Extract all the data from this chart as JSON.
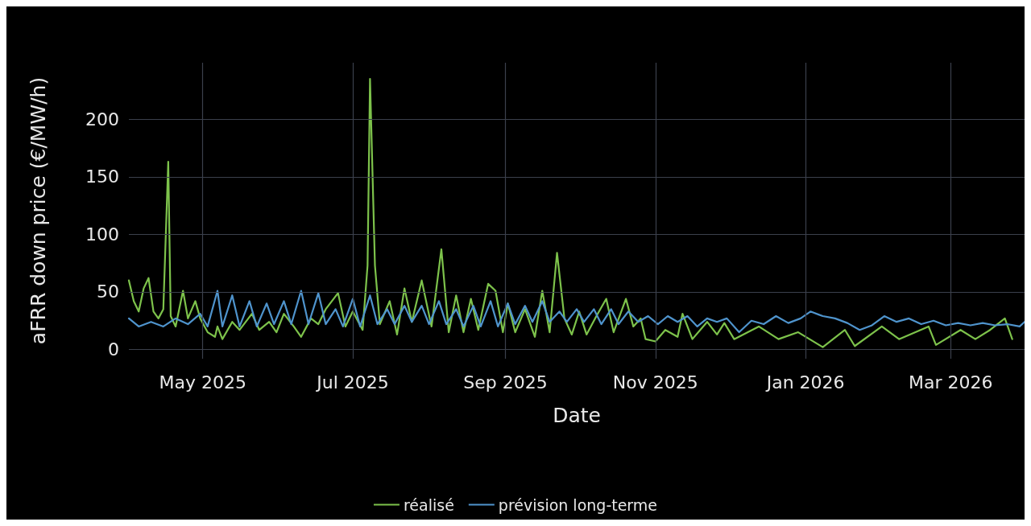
{
  "chart_data": {
    "type": "line",
    "xlabel": "Date",
    "ylabel": "aFRR down price (€/MW/h)",
    "xlim": [
      "2025-04-01",
      "2026-03-31"
    ],
    "xticks": [
      {
        "value": "2025-05-01",
        "label": "May 2025"
      },
      {
        "value": "2025-07-01",
        "label": "Jul 2025"
      },
      {
        "value": "2025-09-01",
        "label": "Sep 2025"
      },
      {
        "value": "2025-11-01",
        "label": "Nov 2025"
      },
      {
        "value": "2026-01-01",
        "label": "Jan 2026"
      },
      {
        "value": "2026-03-01",
        "label": "Mar 2026"
      }
    ],
    "ylim": [
      -8,
      249
    ],
    "yticks": [
      0,
      50,
      100,
      150,
      200
    ],
    "grid": true,
    "legend": "bottom",
    "marker": "none",
    "line_style": "solid",
    "series": [
      {
        "name": "réalisé",
        "color": "#7dc24b",
        "x": [
          "2025-04-01",
          "2025-04-03",
          "2025-04-05",
          "2025-04-07",
          "2025-04-09",
          "2025-04-11",
          "2025-04-13",
          "2025-04-15",
          "2025-04-17",
          "2025-04-18",
          "2025-04-20",
          "2025-04-23",
          "2025-04-25",
          "2025-04-28",
          "2025-04-30",
          "2025-05-03",
          "2025-05-06",
          "2025-05-07",
          "2025-05-09",
          "2025-05-13",
          "2025-05-16",
          "2025-05-21",
          "2025-05-24",
          "2025-05-28",
          "2025-05-31",
          "2025-06-03",
          "2025-06-07",
          "2025-06-10",
          "2025-06-14",
          "2025-06-17",
          "2025-06-20",
          "2025-06-25",
          "2025-06-28",
          "2025-07-01",
          "2025-07-05",
          "2025-07-07",
          "2025-07-08",
          "2025-07-10",
          "2025-07-12",
          "2025-07-16",
          "2025-07-19",
          "2025-07-22",
          "2025-07-25",
          "2025-07-29",
          "2025-08-02",
          "2025-08-06",
          "2025-08-09",
          "2025-08-12",
          "2025-08-15",
          "2025-08-18",
          "2025-08-21",
          "2025-08-25",
          "2025-08-28",
          "2025-08-31",
          "2025-09-02",
          "2025-09-05",
          "2025-09-09",
          "2025-09-13",
          "2025-09-16",
          "2025-09-19",
          "2025-09-22",
          "2025-09-25",
          "2025-09-28",
          "2025-10-01",
          "2025-10-04",
          "2025-10-08",
          "2025-10-12",
          "2025-10-15",
          "2025-10-20",
          "2025-10-23",
          "2025-10-26",
          "2025-10-28",
          "2025-11-01",
          "2025-11-05",
          "2025-11-10",
          "2025-11-12",
          "2025-11-16",
          "2025-11-22",
          "2025-11-26",
          "2025-11-29",
          "2025-12-03",
          "2025-12-13",
          "2025-12-21",
          "2025-12-29",
          "2026-01-08",
          "2026-01-17",
          "2026-01-21",
          "2026-02-01",
          "2026-02-08",
          "2026-02-20",
          "2026-02-23",
          "2026-03-05",
          "2026-03-11",
          "2026-03-17",
          "2026-03-23",
          "2026-03-26"
        ],
        "values": [
          60,
          42,
          33,
          53,
          62,
          33,
          27,
          35,
          163,
          29,
          20,
          51,
          27,
          42,
          27,
          15,
          11,
          20,
          9,
          24,
          17,
          31,
          17,
          24,
          15,
          31,
          20,
          11,
          27,
          22,
          35,
          49,
          20,
          33,
          17,
          73,
          235,
          73,
          22,
          42,
          13,
          53,
          24,
          60,
          20,
          87,
          15,
          47,
          15,
          44,
          17,
          57,
          51,
          15,
          40,
          15,
          35,
          11,
          51,
          15,
          84,
          27,
          13,
          33,
          13,
          29,
          44,
          15,
          44,
          20,
          27,
          9,
          7,
          17,
          11,
          31,
          9,
          24,
          13,
          23,
          9,
          20,
          9,
          15,
          2,
          17,
          3,
          20,
          9,
          20,
          4,
          17,
          9,
          17,
          27,
          9
        ]
      },
      {
        "name": "prévision long-terme",
        "color": "#4f94cd",
        "x": [
          "2025-04-01",
          "2025-04-05",
          "2025-04-10",
          "2025-04-15",
          "2025-04-20",
          "2025-04-25",
          "2025-04-30",
          "2025-05-03",
          "2025-05-07",
          "2025-05-09",
          "2025-05-13",
          "2025-05-16",
          "2025-05-20",
          "2025-05-23",
          "2025-05-27",
          "2025-05-30",
          "2025-06-03",
          "2025-06-06",
          "2025-06-10",
          "2025-06-13",
          "2025-06-17",
          "2025-06-20",
          "2025-06-24",
          "2025-06-27",
          "2025-07-01",
          "2025-07-04",
          "2025-07-08",
          "2025-07-11",
          "2025-07-15",
          "2025-07-18",
          "2025-07-22",
          "2025-07-25",
          "2025-07-29",
          "2025-08-01",
          "2025-08-05",
          "2025-08-08",
          "2025-08-12",
          "2025-08-15",
          "2025-08-19",
          "2025-08-22",
          "2025-08-26",
          "2025-08-29",
          "2025-09-02",
          "2025-09-05",
          "2025-09-09",
          "2025-09-12",
          "2025-09-16",
          "2025-09-19",
          "2025-09-23",
          "2025-09-26",
          "2025-09-30",
          "2025-10-03",
          "2025-10-07",
          "2025-10-10",
          "2025-10-14",
          "2025-10-17",
          "2025-10-21",
          "2025-10-25",
          "2025-10-29",
          "2025-11-02",
          "2025-11-06",
          "2025-11-10",
          "2025-11-14",
          "2025-11-18",
          "2025-11-22",
          "2025-11-26",
          "2025-11-30",
          "2025-12-05",
          "2025-12-10",
          "2025-12-15",
          "2025-12-20",
          "2025-12-25",
          "2025-12-30",
          "2026-01-03",
          "2026-01-08",
          "2026-01-13",
          "2026-01-18",
          "2026-01-23",
          "2026-01-28",
          "2026-02-02",
          "2026-02-07",
          "2026-02-12",
          "2026-02-17",
          "2026-02-22",
          "2026-02-27",
          "2026-03-04",
          "2026-03-09",
          "2026-03-14",
          "2026-03-19",
          "2026-03-24",
          "2026-03-29",
          "2026-03-31"
        ],
        "values": [
          27,
          20,
          24,
          20,
          27,
          22,
          31,
          20,
          51,
          20,
          47,
          20,
          42,
          20,
          40,
          22,
          42,
          22,
          51,
          22,
          49,
          22,
          35,
          20,
          44,
          20,
          47,
          22,
          35,
          22,
          38,
          24,
          38,
          22,
          42,
          22,
          35,
          20,
          38,
          20,
          42,
          20,
          40,
          22,
          38,
          24,
          42,
          24,
          33,
          24,
          35,
          24,
          35,
          22,
          35,
          22,
          33,
          24,
          29,
          22,
          29,
          24,
          29,
          20,
          27,
          24,
          27,
          15,
          25,
          22,
          29,
          23,
          27,
          33,
          29,
          27,
          23,
          17,
          21,
          29,
          24,
          27,
          22,
          25,
          21,
          23,
          21,
          23,
          21,
          22,
          20,
          24
        ]
      }
    ]
  }
}
